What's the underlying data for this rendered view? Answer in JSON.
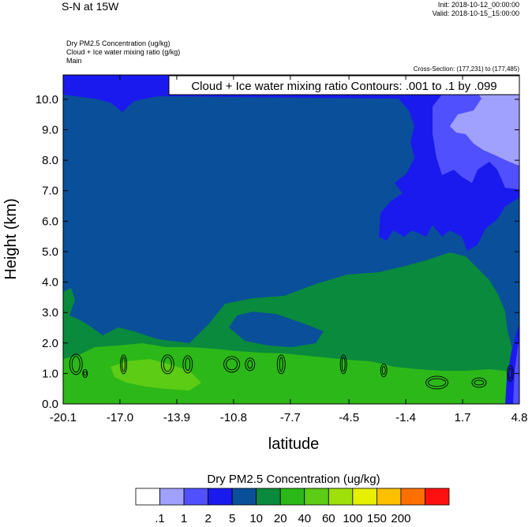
{
  "header": {
    "title": "S-N at 15W",
    "init": "Init: 2018-10-12_00:00:00",
    "valid": "Valid: 2018-10-15_15:00:00",
    "fields": [
      "Dry PM2.5 Concentration   (ug/kg)",
      "Cloud + Ice water mixing ratio   (g/kg)",
      "Main"
    ],
    "cross_section": "Cross-Section: (177,231) to (177,485)"
  },
  "chart_data": {
    "type": "heatmap",
    "title": "S-N at 15W",
    "xlabel": "latitude",
    "ylabel": "Height (km)",
    "xlim": [
      -20.1,
      4.8
    ],
    "ylim": [
      0.0,
      10.8
    ],
    "x_ticks": [
      "-20.1",
      "-17.0",
      "-13.9",
      "-10.8",
      "-7.7",
      "-4.5",
      "-1.4",
      "1.7",
      "4.8"
    ],
    "y_ticks": [
      "0.0",
      "1.0",
      "2.0",
      "3.0",
      "4.0",
      "5.0",
      "6.0",
      "7.0",
      "8.0",
      "9.0",
      "10.0"
    ],
    "contour_label": "Cloud + Ice water mixing ratio Contours: .001 to .1 by .099",
    "colorbar": {
      "title": "Dry PM2.5 Concentration  (ug/kg)",
      "labels": [
        ".1",
        "1",
        "2",
        "5",
        "10",
        "20",
        "40",
        "60",
        "100",
        "150",
        "200"
      ],
      "colors": [
        "#ffffff",
        "#a0a0ff",
        "#5050ff",
        "#1a1aee",
        "#0a4f9a",
        "#0a8a3c",
        "#2cb818",
        "#5ccc14",
        "#a0e00a",
        "#e6f000",
        "#ffc000",
        "#ff7000",
        "#ff1010"
      ]
    },
    "regions": [
      {
        "level": "10",
        "color": "#0a4f9a",
        "description": "background from surface to top"
      },
      {
        "level": "5",
        "color": "#1a1aee",
        "top_band": "~10.2 to 10.8 km across domain; upper-right column above ~5.5 km north of -1.4"
      },
      {
        "level": "2",
        "color": "#5050ff",
        "area": "upper right, latitude ~1.7 to 4.8, 7 to 10.8 km; near surface at 4.8"
      },
      {
        "level": "1",
        "color": "#a0a0ff",
        "area": "top right corner, latitude ~3 to 4.8, 8.5 to 10.8 km"
      },
      {
        "level": "20",
        "color": "#0a8a3c",
        "area": "lowest layer from surface up to ~2.5 km on the south side and up to ~4.5 km around 0 latitude"
      },
      {
        "level": "40",
        "color": "#2cb818",
        "area": "surface to ~1.5 km"
      },
      {
        "level": "60",
        "color": "#5ccc14",
        "area": "small patches near surface at -16 to -12"
      }
    ],
    "contours": [
      {
        "lat": -19.4,
        "height": 1.3
      },
      {
        "lat": -18.9,
        "height": 1.0
      },
      {
        "lat": -16.8,
        "height": 1.3
      },
      {
        "lat": -14.4,
        "height": 1.3
      },
      {
        "lat": -13.3,
        "height": 1.3
      },
      {
        "lat": -10.9,
        "height": 1.3
      },
      {
        "lat": -9.9,
        "height": 1.3
      },
      {
        "lat": -8.2,
        "height": 1.3
      },
      {
        "lat": -4.8,
        "height": 1.3
      },
      {
        "lat": -2.6,
        "height": 1.1
      },
      {
        "lat": 0.3,
        "height": 0.7
      },
      {
        "lat": 2.6,
        "height": 0.7
      },
      {
        "lat": 4.3,
        "height": 1.0
      }
    ]
  }
}
